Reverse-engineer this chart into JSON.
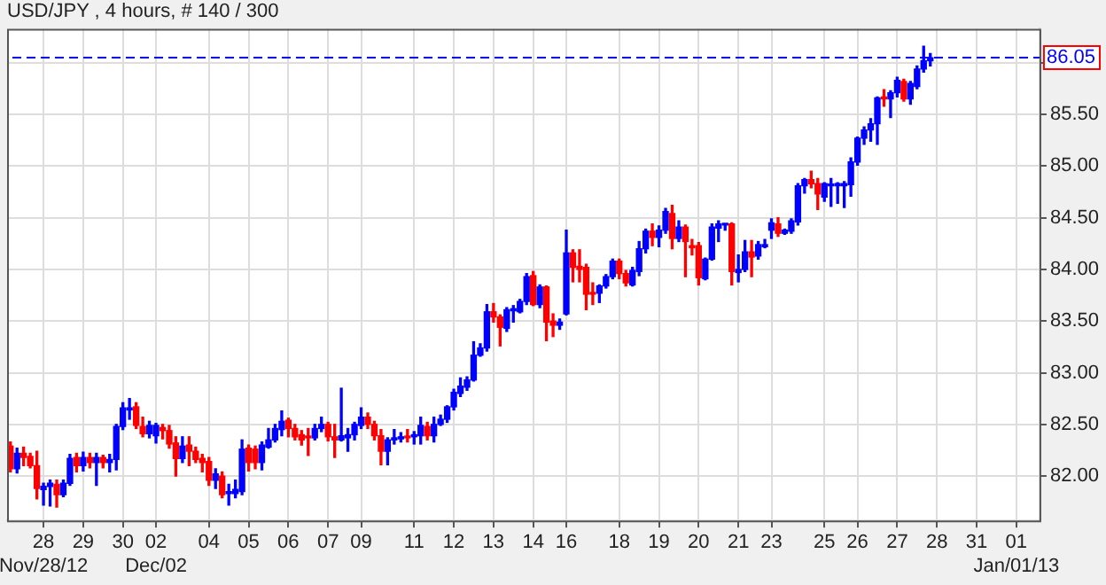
{
  "chart_data": {
    "type": "candlestick",
    "title": "USD/JPY , 4 hours, # 140 / 300",
    "categories": [
      null,
      null,
      null,
      null,
      null,
      "28\nNov/28/12",
      null,
      null,
      null,
      null,
      null,
      "29",
      null,
      null,
      null,
      null,
      null,
      "30",
      null,
      null,
      null,
      null,
      "02\nDec/02",
      null,
      null,
      null,
      null,
      null,
      null,
      null,
      "04",
      null,
      null,
      null,
      null,
      null,
      "05",
      null,
      null,
      null,
      null,
      null,
      "06",
      null,
      null,
      null,
      null,
      null,
      "07",
      null,
      null,
      null,
      null,
      "09",
      null,
      null,
      null,
      null,
      null,
      null,
      null,
      "11",
      null,
      null,
      null,
      null,
      null,
      "12",
      null,
      null,
      null,
      null,
      null,
      "13",
      null,
      null,
      null,
      null,
      null,
      "14",
      null,
      null,
      null,
      null,
      "16",
      null,
      null,
      null,
      null,
      null,
      null,
      null,
      "18",
      null,
      null,
      null,
      null,
      null,
      "19",
      null,
      null,
      null,
      null,
      null,
      "20",
      null,
      null,
      null,
      null,
      null,
      "21",
      null,
      null,
      null,
      null,
      "23",
      null,
      null,
      null,
      null,
      null,
      null,
      null,
      "25",
      null,
      null,
      null,
      null,
      "26",
      null,
      null,
      null,
      null,
      null,
      "27",
      null,
      null,
      null,
      null,
      null,
      "28",
      null,
      null,
      null,
      null,
      null,
      "31",
      null,
      null,
      null,
      null,
      null,
      "01\nJan/01/13",
      null,
      null,
      null
    ],
    "ohlc": [
      [
        82.29,
        82.33,
        82.04,
        82.07
      ],
      [
        82.07,
        82.27,
        82.03,
        82.22
      ],
      [
        82.22,
        82.28,
        82.1,
        82.18
      ],
      [
        82.19,
        82.22,
        82.08,
        82.1
      ],
      [
        82.1,
        82.24,
        81.78,
        81.88
      ],
      [
        81.87,
        81.93,
        81.72,
        81.9
      ],
      [
        81.9,
        81.96,
        81.71,
        81.93
      ],
      [
        81.92,
        81.96,
        81.7,
        81.82
      ],
      [
        81.82,
        81.96,
        81.8,
        81.93
      ],
      [
        81.93,
        82.21,
        81.91,
        82.17
      ],
      [
        82.18,
        82.22,
        82.04,
        82.1
      ],
      [
        82.1,
        82.23,
        82.05,
        82.18
      ],
      [
        82.18,
        82.22,
        82.08,
        82.13
      ],
      [
        82.13,
        82.22,
        81.91,
        82.18
      ],
      [
        82.18,
        82.2,
        82.08,
        82.13
      ],
      [
        82.13,
        82.21,
        82.04,
        82.16
      ],
      [
        82.16,
        82.5,
        82.06,
        82.48
      ],
      [
        82.48,
        82.71,
        82.45,
        82.66
      ],
      [
        82.64,
        82.75,
        82.55,
        82.66
      ],
      [
        82.67,
        82.71,
        82.46,
        82.49
      ],
      [
        82.48,
        82.57,
        82.38,
        82.41
      ],
      [
        82.41,
        82.53,
        82.37,
        82.49
      ],
      [
        82.39,
        82.51,
        82.32,
        82.49
      ],
      [
        82.47,
        82.5,
        82.36,
        82.44
      ],
      [
        82.44,
        82.49,
        82.27,
        82.31
      ],
      [
        82.32,
        82.38,
        82.0,
        82.17
      ],
      [
        82.17,
        82.38,
        82.13,
        82.29
      ],
      [
        82.3,
        82.38,
        82.1,
        82.24
      ],
      [
        82.24,
        82.28,
        82.13,
        82.16
      ],
      [
        82.17,
        82.21,
        82.04,
        82.13
      ],
      [
        82.14,
        82.18,
        81.91,
        81.96
      ],
      [
        81.96,
        82.07,
        81.88,
        82.02
      ],
      [
        82.0,
        82.04,
        81.79,
        81.82
      ],
      [
        81.83,
        81.92,
        81.72,
        81.85
      ],
      [
        81.83,
        81.96,
        81.79,
        81.87
      ],
      [
        81.85,
        82.35,
        81.82,
        82.26
      ],
      [
        82.27,
        82.3,
        82.05,
        82.13
      ],
      [
        82.26,
        82.29,
        82.07,
        82.13
      ],
      [
        82.13,
        82.33,
        82.06,
        82.3
      ],
      [
        82.28,
        82.46,
        82.27,
        82.35
      ],
      [
        82.35,
        82.5,
        82.33,
        82.46
      ],
      [
        82.45,
        82.63,
        82.39,
        82.53
      ],
      [
        82.54,
        82.56,
        82.38,
        82.46
      ],
      [
        82.46,
        82.5,
        82.35,
        82.38
      ],
      [
        82.4,
        82.44,
        82.3,
        82.35
      ],
      [
        82.38,
        82.46,
        82.2,
        82.37
      ],
      [
        82.37,
        82.5,
        82.35,
        82.46
      ],
      [
        82.46,
        82.57,
        82.43,
        82.5
      ],
      [
        82.5,
        82.52,
        82.34,
        82.38
      ],
      [
        82.38,
        82.5,
        82.18,
        82.35
      ],
      [
        82.35,
        82.85,
        82.34,
        82.39
      ],
      [
        82.37,
        82.46,
        82.24,
        82.4
      ],
      [
        82.4,
        82.52,
        82.35,
        82.5
      ],
      [
        82.49,
        82.66,
        82.46,
        82.57
      ],
      [
        82.57,
        82.61,
        82.46,
        82.5
      ],
      [
        82.5,
        82.53,
        82.35,
        82.39
      ],
      [
        82.39,
        82.45,
        82.11,
        82.24
      ],
      [
        82.24,
        82.37,
        82.11,
        82.35
      ],
      [
        82.35,
        82.45,
        82.31,
        82.37
      ],
      [
        82.36,
        82.42,
        82.33,
        82.38
      ],
      [
        82.38,
        82.45,
        82.33,
        82.37
      ],
      [
        82.38,
        82.43,
        82.31,
        82.4
      ],
      [
        82.39,
        82.57,
        82.31,
        82.49
      ],
      [
        82.48,
        82.52,
        82.35,
        82.39
      ],
      [
        82.39,
        82.57,
        82.33,
        82.5
      ],
      [
        82.5,
        82.59,
        82.49,
        82.55
      ],
      [
        82.55,
        82.68,
        82.52,
        82.67
      ],
      [
        82.67,
        82.84,
        82.64,
        82.81
      ],
      [
        82.8,
        82.95,
        82.77,
        82.87
      ],
      [
        82.86,
        82.96,
        82.83,
        82.93
      ],
      [
        82.93,
        83.3,
        82.92,
        83.17
      ],
      [
        83.17,
        83.28,
        83.16,
        83.24
      ],
      [
        83.24,
        83.66,
        83.21,
        83.59
      ],
      [
        83.59,
        83.67,
        83.49,
        83.54
      ],
      [
        83.54,
        83.56,
        83.26,
        83.44
      ],
      [
        83.43,
        83.63,
        83.4,
        83.61
      ],
      [
        83.6,
        83.65,
        83.49,
        83.62
      ],
      [
        83.59,
        83.71,
        83.58,
        83.69
      ],
      [
        83.69,
        83.96,
        83.66,
        83.93
      ],
      [
        83.94,
        83.98,
        83.65,
        83.66
      ],
      [
        83.66,
        83.85,
        83.63,
        83.83
      ],
      [
        83.83,
        83.84,
        83.31,
        83.49
      ],
      [
        83.5,
        83.57,
        83.35,
        83.46
      ],
      [
        83.46,
        83.52,
        83.42,
        83.49
      ],
      [
        83.57,
        84.38,
        83.56,
        84.16
      ],
      [
        84.16,
        84.19,
        83.88,
        84.02
      ],
      [
        84.03,
        84.19,
        83.88,
        84.0
      ],
      [
        84.02,
        84.05,
        83.61,
        83.76
      ],
      [
        83.77,
        83.87,
        83.66,
        83.76
      ],
      [
        83.77,
        83.85,
        83.68,
        83.84
      ],
      [
        83.84,
        83.95,
        83.82,
        83.93
      ],
      [
        83.93,
        84.1,
        83.91,
        84.08
      ],
      [
        84.08,
        84.1,
        83.91,
        83.96
      ],
      [
        83.96,
        83.99,
        83.84,
        83.87
      ],
      [
        83.85,
        84.02,
        83.84,
        83.99
      ],
      [
        83.98,
        84.27,
        83.94,
        84.2
      ],
      [
        84.2,
        84.39,
        84.16,
        84.37
      ],
      [
        84.37,
        84.44,
        84.23,
        84.31
      ],
      [
        84.31,
        84.42,
        84.22,
        84.38
      ],
      [
        84.38,
        84.59,
        84.35,
        84.56
      ],
      [
        84.54,
        84.62,
        84.2,
        84.3
      ],
      [
        84.3,
        84.47,
        84.27,
        84.41
      ],
      [
        84.41,
        84.43,
        83.93,
        84.27
      ],
      [
        84.23,
        84.29,
        84.14,
        84.21
      ],
      [
        84.23,
        84.26,
        83.85,
        83.92
      ],
      [
        83.91,
        84.11,
        83.9,
        84.1
      ],
      [
        84.1,
        84.44,
        84.09,
        84.41
      ],
      [
        84.4,
        84.47,
        84.27,
        84.44
      ],
      [
        84.43,
        84.44,
        84.38,
        84.43
      ],
      [
        84.44,
        84.45,
        83.85,
        83.98
      ],
      [
        83.97,
        84.14,
        83.88,
        84.0
      ],
      [
        84.0,
        84.28,
        83.98,
        84.17
      ],
      [
        84.17,
        84.28,
        83.93,
        84.12
      ],
      [
        84.13,
        84.27,
        84.1,
        84.24
      ],
      [
        84.22,
        84.29,
        84.21,
        84.24
      ],
      [
        84.38,
        84.49,
        84.3,
        84.45
      ],
      [
        84.44,
        84.5,
        84.32,
        84.35
      ],
      [
        84.35,
        84.39,
        84.34,
        84.38
      ],
      [
        84.37,
        84.49,
        84.35,
        84.47
      ],
      [
        84.46,
        84.83,
        84.43,
        84.81
      ],
      [
        84.81,
        84.88,
        84.74,
        84.87
      ],
      [
        84.87,
        84.95,
        84.79,
        84.83
      ],
      [
        84.83,
        84.88,
        84.58,
        84.73
      ],
      [
        84.7,
        84.84,
        84.66,
        84.83
      ],
      [
        84.81,
        84.88,
        84.61,
        84.82
      ],
      [
        84.81,
        84.84,
        84.64,
        84.83
      ],
      [
        84.81,
        84.85,
        84.6,
        84.83
      ],
      [
        84.82,
        85.08,
        84.71,
        85.04
      ],
      [
        85.04,
        85.28,
        85.01,
        85.27
      ],
      [
        85.27,
        85.38,
        85.21,
        85.35
      ],
      [
        85.35,
        85.46,
        85.24,
        85.41
      ],
      [
        85.41,
        85.67,
        85.21,
        85.66
      ],
      [
        85.67,
        85.74,
        85.58,
        85.65
      ],
      [
        85.65,
        85.73,
        85.47,
        85.71
      ],
      [
        85.71,
        85.86,
        85.67,
        85.83
      ],
      [
        85.82,
        85.84,
        85.63,
        85.65
      ],
      [
        85.65,
        85.82,
        85.6,
        85.8
      ],
      [
        85.77,
        85.97,
        85.75,
        85.94
      ],
      [
        85.94,
        86.16,
        85.91,
        86.02
      ],
      [
        86.02,
        86.09,
        85.97,
        86.05
      ],
      null,
      null,
      null,
      null,
      null,
      null,
      null,
      null,
      null,
      null,
      null,
      null,
      null,
      null,
      null,
      null
    ],
    "colors": [
      "#ff0000",
      "#0000ff",
      "#ff0000",
      "#ff0000",
      "#ff0000",
      "#0000ff",
      "#0000ff",
      "#ff0000",
      "#0000ff",
      "#0000ff",
      "#ff0000",
      "#0000ff",
      "#ff0000",
      "#0000ff",
      "#ff0000",
      "#0000ff",
      "#0000ff",
      "#0000ff",
      "#0000ff",
      "#ff0000",
      "#ff0000",
      "#0000ff",
      "#0000ff",
      "#ff0000",
      "#ff0000",
      "#ff0000",
      "#0000ff",
      "#ff0000",
      "#ff0000",
      "#ff0000",
      "#ff0000",
      "#0000ff",
      "#ff0000",
      "#0000ff",
      "#0000ff",
      "#0000ff",
      "#ff0000",
      "#ff0000",
      "#0000ff",
      "#0000ff",
      "#0000ff",
      "#0000ff",
      "#ff0000",
      "#ff0000",
      "#ff0000",
      "#ff0000",
      "#0000ff",
      "#0000ff",
      "#ff0000",
      "#ff0000",
      "#0000ff",
      "#0000ff",
      "#0000ff",
      "#0000ff",
      "#ff0000",
      "#ff0000",
      "#ff0000",
      "#0000ff",
      "#0000ff",
      "#0000ff",
      "#ff0000",
      "#0000ff",
      "#0000ff",
      "#ff0000",
      "#0000ff",
      "#0000ff",
      "#0000ff",
      "#0000ff",
      "#0000ff",
      "#0000ff",
      "#0000ff",
      "#0000ff",
      "#0000ff",
      "#ff0000",
      "#ff0000",
      "#0000ff",
      "#0000ff",
      "#0000ff",
      "#0000ff",
      "#ff0000",
      "#0000ff",
      "#ff0000",
      "#ff0000",
      "#0000ff",
      "#0000ff",
      "#ff0000",
      "#ff0000",
      "#ff0000",
      "#ff0000",
      "#0000ff",
      "#0000ff",
      "#0000ff",
      "#ff0000",
      "#ff0000",
      "#0000ff",
      "#0000ff",
      "#0000ff",
      "#ff0000",
      "#0000ff",
      "#0000ff",
      "#ff0000",
      "#0000ff",
      "#ff0000",
      "#ff0000",
      "#ff0000",
      "#0000ff",
      "#0000ff",
      "#0000ff",
      "#0000ff",
      "#ff0000",
      "#0000ff",
      "#0000ff",
      "#ff0000",
      "#0000ff",
      "#0000ff",
      "#0000ff",
      "#ff0000",
      "#0000ff",
      "#0000ff",
      "#0000ff",
      "#0000ff",
      "#ff0000",
      "#ff0000",
      "#0000ff",
      "#0000ff",
      "#0000ff",
      "#0000ff",
      "#0000ff",
      "#0000ff",
      "#0000ff",
      "#0000ff",
      "#0000ff",
      "#ff0000",
      "#0000ff",
      "#0000ff",
      "#ff0000",
      "#0000ff",
      "#0000ff",
      "#0000ff",
      "#0000ff",
      null,
      null,
      null,
      null,
      null,
      null,
      null,
      null,
      null,
      null,
      null,
      null,
      null,
      null,
      null,
      null
    ],
    "ylim": [
      81.57,
      86.33
    ],
    "yticks": [
      {
        "value": 82,
        "label": "82.00"
      },
      {
        "value": 82.5,
        "label": "82.50"
      },
      {
        "value": 83,
        "label": "83.00"
      },
      {
        "value": 83.5,
        "label": "83.50"
      },
      {
        "value": 84,
        "label": "84.00"
      },
      {
        "value": 84.5,
        "label": "84.50"
      },
      {
        "value": 85,
        "label": "85.00"
      },
      {
        "value": 85.5,
        "label": "85.50"
      },
      {
        "value": 86,
        "label": null
      }
    ],
    "ref_lines": [
      {
        "axis": "y",
        "value": 86.05,
        "label": "86.05",
        "color": "#0000ff",
        "line_style": "dashed"
      }
    ],
    "grid": true,
    "legend": false
  }
}
